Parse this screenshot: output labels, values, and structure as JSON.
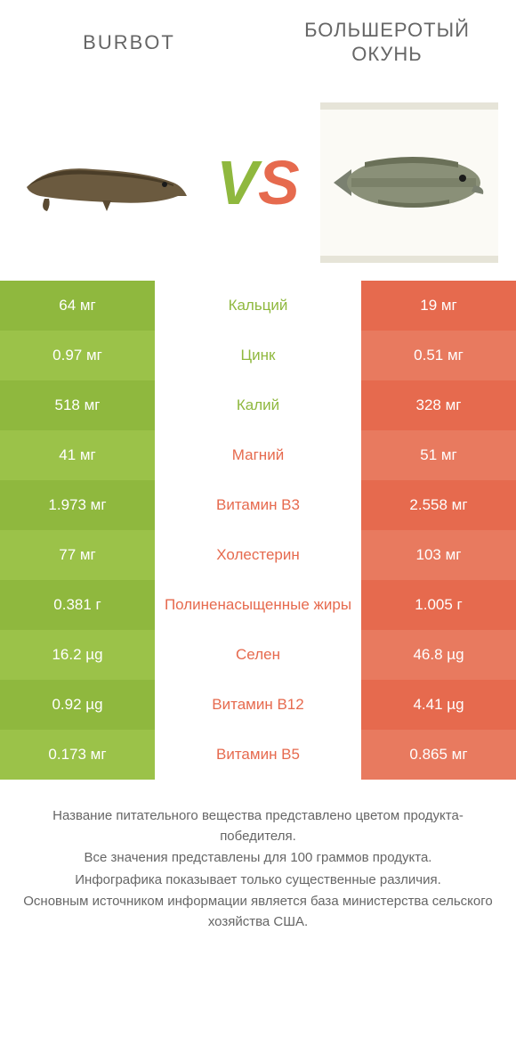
{
  "colors": {
    "left_primary": "#8fb83e",
    "left_alt": "#9bc249",
    "right_primary": "#e66a4e",
    "right_alt": "#e87a5f",
    "mid_left_text": "#8fb83e",
    "mid_right_text": "#e66a4e",
    "body_text": "#666666"
  },
  "header": {
    "left": "BURBOT",
    "right": "БОЛЬШЕРОТЫЙ ОКУНЬ"
  },
  "vs": {
    "v": "V",
    "s": "S"
  },
  "rows": [
    {
      "left": "64 мг",
      "mid": "Кальций",
      "right": "19 мг",
      "winner": "left"
    },
    {
      "left": "0.97 мг",
      "mid": "Цинк",
      "right": "0.51 мг",
      "winner": "left"
    },
    {
      "left": "518 мг",
      "mid": "Калий",
      "right": "328 мг",
      "winner": "left"
    },
    {
      "left": "41 мг",
      "mid": "Магний",
      "right": "51 мг",
      "winner": "right"
    },
    {
      "left": "1.973 мг",
      "mid": "Витамин B3",
      "right": "2.558 мг",
      "winner": "right"
    },
    {
      "left": "77 мг",
      "mid": "Холестерин",
      "right": "103 мг",
      "winner": "right"
    },
    {
      "left": "0.381 г",
      "mid": "Полиненасыщенные жиры",
      "right": "1.005 г",
      "winner": "right"
    },
    {
      "left": "16.2 µg",
      "mid": "Селен",
      "right": "46.8 µg",
      "winner": "right"
    },
    {
      "left": "0.92 µg",
      "mid": "Витамин B12",
      "right": "4.41 µg",
      "winner": "right"
    },
    {
      "left": "0.173 мг",
      "mid": "Витамин B5",
      "right": "0.865 мг",
      "winner": "right"
    }
  ],
  "footer": {
    "l1": "Название питательного вещества представлено цветом продукта-победителя.",
    "l2": "Все значения представлены для 100 граммов продукта.",
    "l3": "Инфографика показывает только существенные различия.",
    "l4": "Основным источником информации является база министерства сельского хозяйства США."
  }
}
